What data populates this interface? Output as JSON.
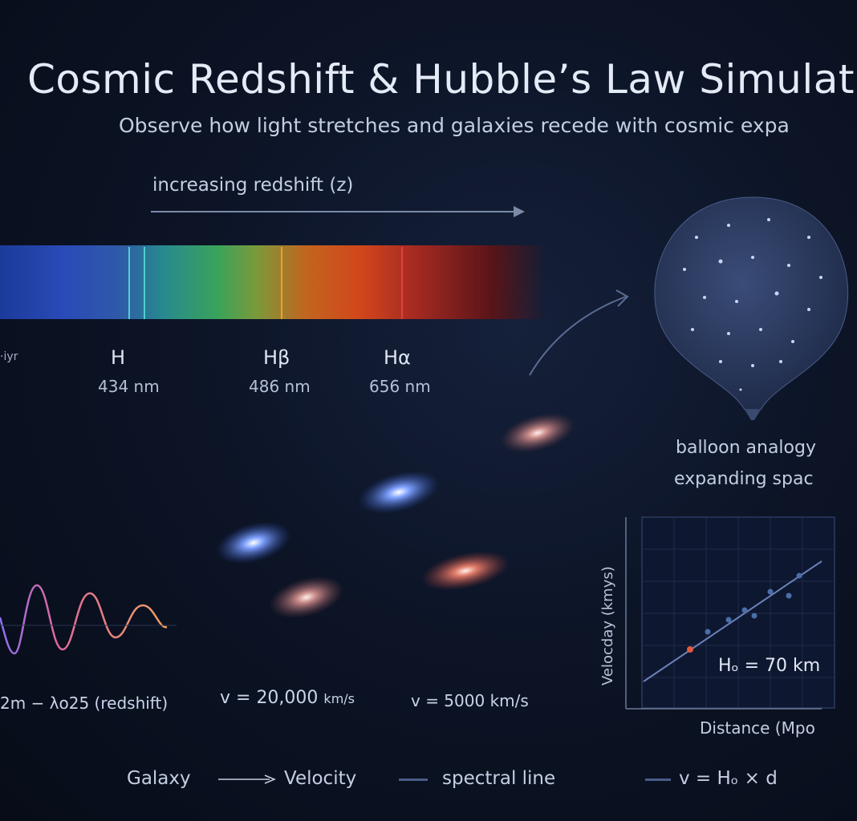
{
  "header": {
    "title": "Cosmic Redshift & Hubble’s Law Simulat",
    "subtitle": "Observe how light stretches and galaxies recede with cosmic expa"
  },
  "spectrum": {
    "arrow_label": "increasing redshift (z)",
    "left_fragment": "·iyr",
    "lines": [
      {
        "name": "H",
        "wavelength": "434 nm",
        "color": "#4fd0d0"
      },
      {
        "name": "Hβ",
        "wavelength": "486 nm",
        "color": "#f0a030"
      },
      {
        "name": "Hα",
        "wavelength": "656 nm",
        "color": "#e04040"
      }
    ],
    "colors": {
      "blue": "#2a4bb8",
      "green": "#3aa35a",
      "orange": "#d2461c",
      "red": "#a52a22"
    }
  },
  "balloon": {
    "caption_line1": "balloon analogy",
    "caption_line2": "expanding spac"
  },
  "wave_caption": "2m − λo25 (redshift)",
  "velocities": [
    {
      "text": "v = 20,000",
      "unit": "km/s"
    },
    {
      "text": "v = 5000 km/s"
    }
  ],
  "hubble_plot": {
    "ylabel": "Velocday (kmys)",
    "xlabel": "Distance (Mpo",
    "annotation": "Hₒ = 70 km",
    "colors": {
      "points": "#4a6ea8",
      "fit": "#6b82b8",
      "highlight": "#e05a40"
    }
  },
  "legend": {
    "galaxy": "Galaxy",
    "velocity": "Velocity",
    "spectral_line": "spectral line",
    "hubble_law": "v = Hₒ × d"
  },
  "icons": [
    "arrow-right-icon",
    "line-swatch-icon"
  ]
}
